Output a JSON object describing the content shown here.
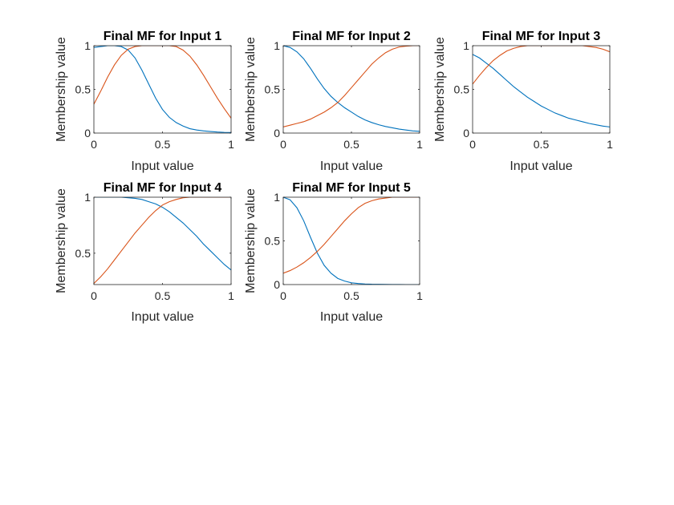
{
  "colors": {
    "series_1": "#0072BD",
    "series_2": "#D95319",
    "axes": "#262626"
  },
  "chart_data": [
    {
      "type": "line",
      "title": "Final MF for Input 1",
      "xlabel": "Input value",
      "ylabel": "Membership value",
      "xlim": [
        0,
        1
      ],
      "ylim": [
        0,
        1
      ],
      "xticks": [
        "0",
        "0.5",
        "1"
      ],
      "yticks": [
        "0",
        "0.5",
        "1"
      ],
      "grid": false,
      "x": [
        0,
        0.05,
        0.1,
        0.15,
        0.2,
        0.25,
        0.3,
        0.35,
        0.4,
        0.45,
        0.5,
        0.55,
        0.6,
        0.65,
        0.7,
        0.75,
        0.8,
        0.85,
        0.9,
        0.95,
        1
      ],
      "series": [
        {
          "values": [
            0.98,
            0.99,
            1.0,
            1.0,
            0.99,
            0.95,
            0.86,
            0.72,
            0.56,
            0.4,
            0.27,
            0.18,
            0.12,
            0.08,
            0.05,
            0.035,
            0.025,
            0.018,
            0.012,
            0.008,
            0.006
          ]
        },
        {
          "values": [
            0.33,
            0.48,
            0.64,
            0.78,
            0.89,
            0.96,
            0.99,
            1.0,
            1.0,
            1.0,
            1.0,
            1.0,
            0.99,
            0.95,
            0.88,
            0.78,
            0.66,
            0.53,
            0.4,
            0.28,
            0.17
          ]
        }
      ]
    },
    {
      "type": "line",
      "title": "Final MF for Input 2",
      "xlabel": "Input value",
      "ylabel": "Membership value",
      "xlim": [
        0,
        1
      ],
      "ylim": [
        0,
        1
      ],
      "xticks": [
        "0",
        "0.5",
        "1"
      ],
      "yticks": [
        "0",
        "0.5",
        "1"
      ],
      "grid": false,
      "x": [
        0,
        0.05,
        0.1,
        0.15,
        0.2,
        0.25,
        0.3,
        0.35,
        0.4,
        0.45,
        0.5,
        0.55,
        0.6,
        0.65,
        0.7,
        0.75,
        0.8,
        0.85,
        0.9,
        0.95,
        1
      ],
      "series": [
        {
          "values": [
            1.0,
            0.98,
            0.93,
            0.85,
            0.74,
            0.62,
            0.51,
            0.42,
            0.35,
            0.29,
            0.24,
            0.19,
            0.15,
            0.12,
            0.095,
            0.075,
            0.06,
            0.045,
            0.035,
            0.025,
            0.02
          ]
        },
        {
          "values": [
            0.07,
            0.09,
            0.11,
            0.13,
            0.16,
            0.2,
            0.24,
            0.29,
            0.35,
            0.43,
            0.52,
            0.61,
            0.7,
            0.79,
            0.86,
            0.92,
            0.96,
            0.985,
            0.995,
            1.0,
            1.0
          ]
        }
      ]
    },
    {
      "type": "line",
      "title": "Final MF for Input 3",
      "xlabel": "Input value",
      "ylabel": "Membership value",
      "xlim": [
        0,
        1
      ],
      "ylim": [
        0,
        1
      ],
      "xticks": [
        "0",
        "0.5",
        "1"
      ],
      "yticks": [
        "0",
        "0.5",
        "1"
      ],
      "grid": false,
      "x": [
        0,
        0.05,
        0.1,
        0.15,
        0.2,
        0.25,
        0.3,
        0.35,
        0.4,
        0.45,
        0.5,
        0.55,
        0.6,
        0.65,
        0.7,
        0.75,
        0.8,
        0.85,
        0.9,
        0.95,
        1
      ],
      "series": [
        {
          "values": [
            0.9,
            0.86,
            0.8,
            0.74,
            0.67,
            0.6,
            0.53,
            0.47,
            0.41,
            0.36,
            0.31,
            0.27,
            0.23,
            0.2,
            0.17,
            0.15,
            0.13,
            0.11,
            0.095,
            0.08,
            0.07
          ]
        },
        {
          "values": [
            0.56,
            0.66,
            0.75,
            0.83,
            0.89,
            0.94,
            0.97,
            0.99,
            1.0,
            1.0,
            1.0,
            1.0,
            1.0,
            1.0,
            1.0,
            1.0,
            1.0,
            0.99,
            0.98,
            0.96,
            0.93
          ]
        }
      ]
    },
    {
      "type": "line",
      "title": "Final MF for Input 4",
      "xlabel": "Input value",
      "ylabel": "Membership value",
      "xlim": [
        0,
        1
      ],
      "ylim": [
        0.22,
        1
      ],
      "xticks": [
        "0",
        "0.5",
        "1"
      ],
      "yticks": [
        "0.5",
        "1"
      ],
      "grid": false,
      "x": [
        0,
        0.05,
        0.1,
        0.15,
        0.2,
        0.25,
        0.3,
        0.35,
        0.4,
        0.45,
        0.5,
        0.55,
        0.6,
        0.65,
        0.7,
        0.75,
        0.8,
        0.85,
        0.9,
        0.95,
        1
      ],
      "series": [
        {
          "values": [
            1.0,
            1.0,
            1.0,
            1.0,
            1.0,
            0.995,
            0.99,
            0.98,
            0.96,
            0.94,
            0.91,
            0.87,
            0.82,
            0.77,
            0.71,
            0.65,
            0.58,
            0.52,
            0.46,
            0.4,
            0.35
          ]
        },
        {
          "values": [
            0.23,
            0.29,
            0.36,
            0.44,
            0.52,
            0.6,
            0.68,
            0.75,
            0.82,
            0.88,
            0.93,
            0.96,
            0.98,
            0.995,
            1.0,
            1.0,
            1.0,
            1.0,
            1.0,
            1.0,
            1.0
          ]
        }
      ]
    },
    {
      "type": "line",
      "title": "Final MF for Input 5",
      "xlabel": "Input value",
      "ylabel": "Membership value",
      "xlim": [
        0,
        1
      ],
      "ylim": [
        0,
        1
      ],
      "xticks": [
        "0",
        "0.5",
        "1"
      ],
      "yticks": [
        "0",
        "0.5",
        "1"
      ],
      "grid": false,
      "x": [
        0,
        0.05,
        0.1,
        0.15,
        0.2,
        0.25,
        0.3,
        0.35,
        0.4,
        0.45,
        0.5,
        0.55,
        0.6,
        0.65,
        0.7,
        0.75,
        0.8,
        0.85,
        0.9,
        0.95,
        1
      ],
      "series": [
        {
          "values": [
            1.0,
            0.97,
            0.88,
            0.73,
            0.54,
            0.36,
            0.22,
            0.13,
            0.07,
            0.04,
            0.02,
            0.012,
            0.007,
            0.004,
            0.003,
            0.002,
            0.001,
            0.001,
            0.0,
            0.0,
            0.0
          ]
        },
        {
          "values": [
            0.13,
            0.16,
            0.2,
            0.25,
            0.31,
            0.38,
            0.46,
            0.55,
            0.64,
            0.73,
            0.81,
            0.88,
            0.93,
            0.96,
            0.98,
            0.99,
            1.0,
            1.0,
            1.0,
            1.0,
            1.0
          ]
        }
      ]
    }
  ]
}
